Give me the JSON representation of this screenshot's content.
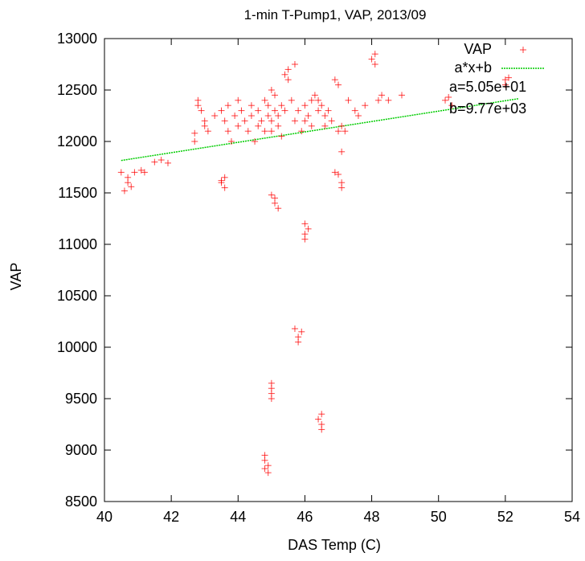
{
  "chart_data": {
    "type": "scatter",
    "title": "1-min T-Pump1, VAP, 2013/09",
    "xlabel": "DAS Temp (C)",
    "ylabel": "VAP",
    "xlim": [
      40,
      54
    ],
    "ylim": [
      8500,
      13000
    ],
    "xticks": [
      "40",
      "42",
      "44",
      "46",
      "48",
      "50",
      "52",
      "54"
    ],
    "yticks": [
      "8500",
      "9000",
      "9500",
      "10000",
      "10500",
      "11000",
      "11500",
      "12000",
      "12500",
      "13000"
    ],
    "legend_position": "top-right",
    "series": [
      {
        "name": "VAP",
        "marker": "plus",
        "color": "#ff0000",
        "points": [
          [
            40.5,
            11700
          ],
          [
            40.6,
            11520
          ],
          [
            40.7,
            11600
          ],
          [
            40.7,
            11650
          ],
          [
            40.8,
            11560
          ],
          [
            40.9,
            11700
          ],
          [
            41.1,
            11720
          ],
          [
            41.2,
            11700
          ],
          [
            41.5,
            11800
          ],
          [
            41.7,
            11820
          ],
          [
            41.9,
            11790
          ],
          [
            42.7,
            12080
          ],
          [
            42.7,
            12000
          ],
          [
            42.8,
            12400
          ],
          [
            42.8,
            12350
          ],
          [
            42.9,
            12300
          ],
          [
            43.0,
            12150
          ],
          [
            43.0,
            12200
          ],
          [
            43.1,
            12100
          ],
          [
            43.3,
            12250
          ],
          [
            43.5,
            11620
          ],
          [
            43.5,
            11600
          ],
          [
            43.6,
            11550
          ],
          [
            43.6,
            11650
          ],
          [
            43.5,
            12300
          ],
          [
            43.6,
            12200
          ],
          [
            43.7,
            12100
          ],
          [
            43.8,
            12000
          ],
          [
            43.7,
            12350
          ],
          [
            43.9,
            12250
          ],
          [
            44.0,
            12150
          ],
          [
            44.0,
            12400
          ],
          [
            44.1,
            12300
          ],
          [
            44.2,
            12200
          ],
          [
            44.3,
            12100
          ],
          [
            44.4,
            12250
          ],
          [
            44.4,
            12350
          ],
          [
            44.5,
            12000
          ],
          [
            44.6,
            12150
          ],
          [
            44.6,
            12300
          ],
          [
            44.7,
            12200
          ],
          [
            44.8,
            12400
          ],
          [
            44.8,
            12100
          ],
          [
            44.9,
            12250
          ],
          [
            44.9,
            12350
          ],
          [
            45.0,
            12200
          ],
          [
            45.0,
            12100
          ],
          [
            45.0,
            12500
          ],
          [
            45.1,
            12300
          ],
          [
            45.1,
            12450
          ],
          [
            45.2,
            12250
          ],
          [
            45.2,
            12150
          ],
          [
            45.3,
            12050
          ],
          [
            45.3,
            12350
          ],
          [
            45.4,
            12300
          ],
          [
            45.4,
            12650
          ],
          [
            45.5,
            12600
          ],
          [
            45.5,
            12700
          ],
          [
            45.6,
            12400
          ],
          [
            45.7,
            12750
          ],
          [
            45.7,
            12200
          ],
          [
            45.8,
            12300
          ],
          [
            45.9,
            12100
          ],
          [
            46.0,
            12200
          ],
          [
            46.0,
            12350
          ],
          [
            46.1,
            12250
          ],
          [
            46.2,
            12150
          ],
          [
            46.2,
            12400
          ],
          [
            46.3,
            12450
          ],
          [
            46.4,
            12400
          ],
          [
            46.4,
            12300
          ],
          [
            46.5,
            12350
          ],
          [
            46.6,
            12250
          ],
          [
            46.6,
            12150
          ],
          [
            46.7,
            12300
          ],
          [
            46.8,
            12200
          ],
          [
            46.9,
            12600
          ],
          [
            47.0,
            12550
          ],
          [
            47.0,
            12100
          ],
          [
            47.1,
            12150
          ],
          [
            47.2,
            12100
          ],
          [
            47.3,
            12400
          ],
          [
            47.5,
            12300
          ],
          [
            47.6,
            12250
          ],
          [
            47.8,
            12350
          ],
          [
            48.0,
            12800
          ],
          [
            48.1,
            12750
          ],
          [
            48.1,
            12850
          ],
          [
            48.2,
            12400
          ],
          [
            48.3,
            12450
          ],
          [
            48.5,
            12400
          ],
          [
            48.9,
            12450
          ],
          [
            50.2,
            12400
          ],
          [
            50.3,
            12430
          ],
          [
            50.4,
            12350
          ],
          [
            52.0,
            12600
          ],
          [
            52.0,
            12550
          ],
          [
            52.1,
            12620
          ],
          [
            45.1,
            11450
          ],
          [
            45.1,
            11400
          ],
          [
            45.2,
            11350
          ],
          [
            45.0,
            11480
          ],
          [
            46.0,
            11200
          ],
          [
            46.0,
            11100
          ],
          [
            46.1,
            11150
          ],
          [
            46.0,
            11050
          ],
          [
            45.7,
            10180
          ],
          [
            45.8,
            10100
          ],
          [
            45.8,
            10050
          ],
          [
            45.9,
            10150
          ],
          [
            45.0,
            9650
          ],
          [
            45.0,
            9550
          ],
          [
            45.0,
            9600
          ],
          [
            45.0,
            9500
          ],
          [
            46.5,
            9350
          ],
          [
            46.5,
            9250
          ],
          [
            46.4,
            9300
          ],
          [
            46.5,
            9200
          ],
          [
            44.8,
            8950
          ],
          [
            44.8,
            8900
          ],
          [
            44.9,
            8850
          ],
          [
            44.9,
            8780
          ],
          [
            44.8,
            8820
          ],
          [
            46.9,
            11700
          ],
          [
            47.0,
            11680
          ],
          [
            47.1,
            11600
          ],
          [
            47.1,
            11550
          ],
          [
            47.1,
            11900
          ]
        ]
      },
      {
        "name": "a*x+b",
        "type": "line",
        "color": "#00cc00",
        "x": [
          40.5,
          52.4
        ],
        "y": [
          11815,
          12416
        ]
      }
    ],
    "annotations": [
      "a=5.05e+01",
      "b=9.77e+03"
    ]
  }
}
